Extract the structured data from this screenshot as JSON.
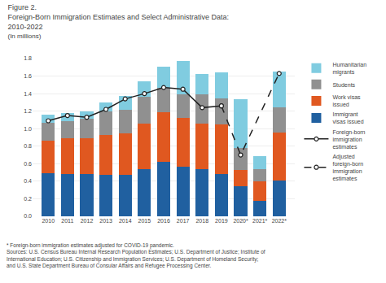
{
  "chart_data": {
    "type": "bar",
    "stacked": true,
    "title": "Figure 2.\nForeign-Born Immigration Estimates and Select Administrative Data:\n2010-2022",
    "subtitle": "(In millions)",
    "annotations": [
      "* Foreign-born immigration estimates adjusted for COVID-19 pandemic.\nSources: U.S. Census Bureau Internal Research Population Estimates; U.S. Department of Justice; Institute of\nInternational Education; U.S. Citizenship and Immigration Services; U.S. Department of Homeland Security;\nand U.S. State Department Bureau of Consular Affairs and Refugee Processing Center."
    ],
    "categories": [
      "2010",
      "2011",
      "2012",
      "2013",
      "2014",
      "2015",
      "2016",
      "2017",
      "2018",
      "2019",
      "2020*",
      "2021*",
      "2022*"
    ],
    "series": [
      {
        "name": "Immigrant\nvisas issued",
        "type": "bar",
        "color": "#2060a0",
        "values": [
          0.49,
          0.48,
          0.48,
          0.47,
          0.47,
          0.54,
          0.62,
          0.57,
          0.54,
          0.48,
          0.34,
          0.18,
          0.41
        ]
      },
      {
        "name": "Work visas\nissued",
        "type": "bar",
        "color": "#e05820",
        "values": [
          0.37,
          0.41,
          0.41,
          0.46,
          0.48,
          0.52,
          0.57,
          0.55,
          0.52,
          0.57,
          0.19,
          0.22,
          0.55
        ]
      },
      {
        "name": "Students",
        "type": "bar",
        "color": "#909090",
        "values": [
          0.21,
          0.2,
          0.22,
          0.27,
          0.27,
          0.3,
          0.28,
          0.27,
          0.33,
          0.3,
          0.25,
          0.14,
          0.28
        ]
      },
      {
        "name": "Humanitarian\nmigrants",
        "type": "bar",
        "color": "#80cce0",
        "values": [
          0.09,
          0.09,
          0.09,
          0.1,
          0.15,
          0.18,
          0.24,
          0.38,
          0.23,
          0.29,
          0.56,
          0.15,
          0.41
        ]
      },
      {
        "name": "Foreign-born\nimmigration\nestimates",
        "type": "line",
        "color": "#222222",
        "line_style": "solid",
        "marker": "circle",
        "values": [
          1.09,
          1.15,
          1.13,
          1.22,
          1.34,
          1.4,
          1.47,
          1.45,
          1.24,
          1.26,
          null,
          null,
          null
        ]
      },
      {
        "name": "Adjusted\nforeign-born\nimmigration\nestimates",
        "type": "line",
        "color": "#222222",
        "line_style": "dashed",
        "marker": "circle",
        "values": [
          null,
          null,
          null,
          null,
          null,
          null,
          null,
          null,
          null,
          1.26,
          0.7,
          null,
          1.63
        ]
      }
    ],
    "ylim": [
      0,
      1.8
    ],
    "yticks": [
      {
        "value": 0,
        "label": "0.0"
      },
      0.2,
      0.4,
      0.6,
      0.8,
      {
        "value": 1.0,
        "label": "1.0"
      },
      1.2,
      1.4,
      1.6,
      1.8
    ],
    "grid": true,
    "legend": "right"
  }
}
